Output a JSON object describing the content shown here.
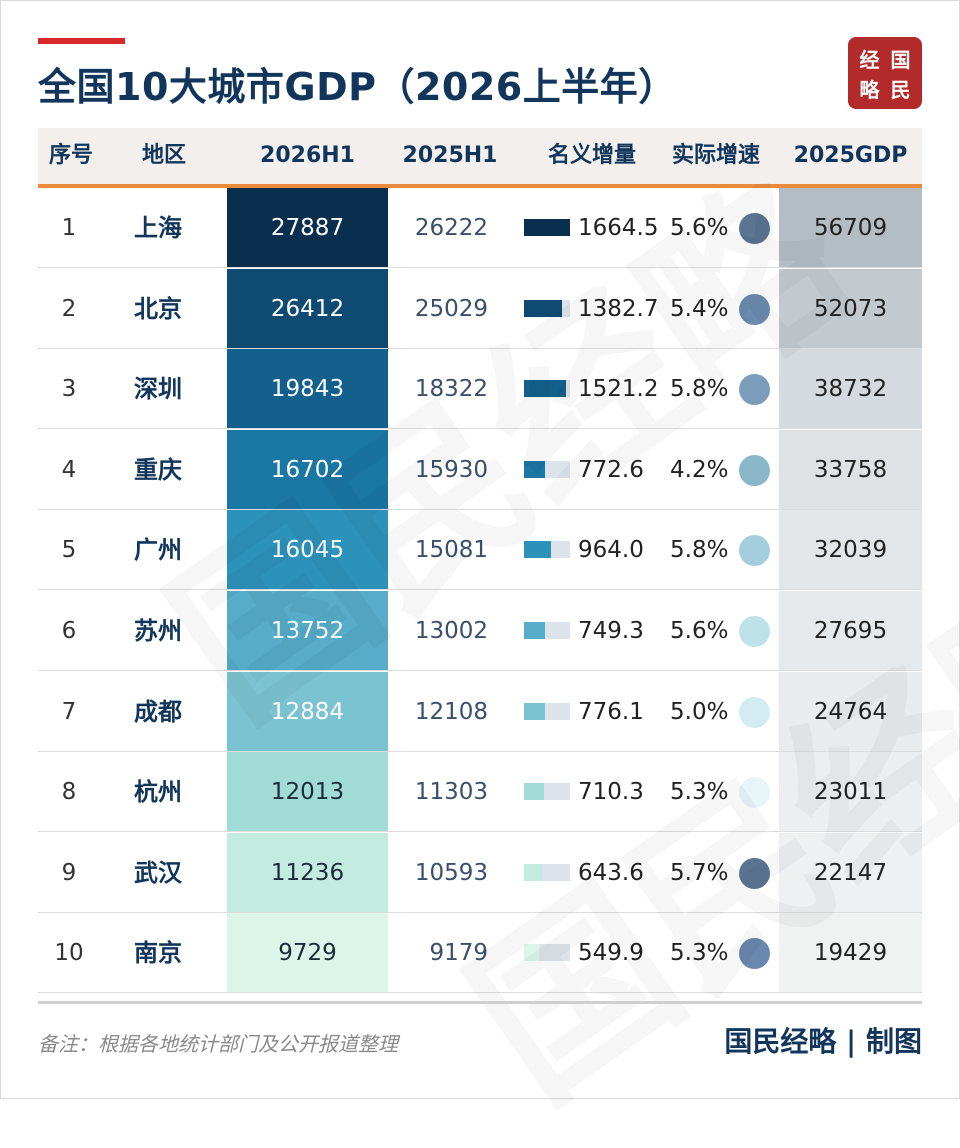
{
  "title": "全国10大城市GDP（2026上半年）",
  "logo": [
    "经",
    "国",
    "略",
    "民"
  ],
  "watermark": "国民经略",
  "note": "备注：根据各地统计部门及公开报道整理",
  "credit": "国民经略 | 制图",
  "colors": {
    "h1_2026": [
      "#0a2e4e",
      "#0f4a72",
      "#13608d",
      "#1a76a3",
      "#2d92ba",
      "#56acc9",
      "#7cc3d1",
      "#a1dbd6",
      "#c3ebdf",
      "#dcf5e8"
    ],
    "gdp_2025": [
      "#b4bdc4",
      "#c2cad0",
      "#d4dadd",
      "#dee2e4",
      "#e3e6e8",
      "#e6e9eb",
      "#e9ebed",
      "#eceeef",
      "#eef0f1",
      "#f0f2f2"
    ],
    "dots": [
      "#5a7591",
      "#6a8aae",
      "#7b9dbb",
      "#8ab6ca",
      "#a4cede",
      "#bee2ea",
      "#d3ecf2",
      "#e8f5f8",
      "#5b7591",
      "#6a87ad"
    ]
  },
  "chart_data": {
    "type": "table",
    "title": "全国10大城市GDP（2026上半年）",
    "columns": [
      "序号",
      "地区",
      "2026H1",
      "2025H1",
      "名义增量",
      "实际增速",
      "2025GDP"
    ],
    "rows": [
      {
        "rank": "1",
        "city": "上海",
        "h1_2026": 27887,
        "h1_2025": 26222,
        "increase": "1664.5",
        "growth": "5.6%",
        "gdp_2025": 56709
      },
      {
        "rank": "2",
        "city": "北京",
        "h1_2026": 26412,
        "h1_2025": 25029,
        "increase": "1382.7",
        "growth": "5.4%",
        "gdp_2025": 52073
      },
      {
        "rank": "3",
        "city": "深圳",
        "h1_2026": 19843,
        "h1_2025": 18322,
        "increase": "1521.2",
        "growth": "5.8%",
        "gdp_2025": 38732
      },
      {
        "rank": "4",
        "city": "重庆",
        "h1_2026": 16702,
        "h1_2025": 15930,
        "increase": "772.6",
        "growth": "4.2%",
        "gdp_2025": 33758
      },
      {
        "rank": "5",
        "city": "广州",
        "h1_2026": 16045,
        "h1_2025": 15081,
        "increase": "964.0",
        "growth": "5.8%",
        "gdp_2025": 32039
      },
      {
        "rank": "6",
        "city": "苏州",
        "h1_2026": 13752,
        "h1_2025": 13002,
        "increase": "749.3",
        "growth": "5.6%",
        "gdp_2025": 27695
      },
      {
        "rank": "7",
        "city": "成都",
        "h1_2026": 12884,
        "h1_2025": 12108,
        "increase": "776.1",
        "growth": "5.0%",
        "gdp_2025": 24764
      },
      {
        "rank": "8",
        "city": "杭州",
        "h1_2026": 12013,
        "h1_2025": 11303,
        "increase": "710.3",
        "growth": "5.3%",
        "gdp_2025": 23011
      },
      {
        "rank": "9",
        "city": "武汉",
        "h1_2026": 11236,
        "h1_2025": 10593,
        "increase": "643.6",
        "growth": "5.7%",
        "gdp_2025": 22147
      },
      {
        "rank": "10",
        "city": "南京",
        "h1_2026": 9729,
        "h1_2025": 9179,
        "increase": "549.9",
        "growth": "5.3%",
        "gdp_2025": 19429
      }
    ]
  }
}
